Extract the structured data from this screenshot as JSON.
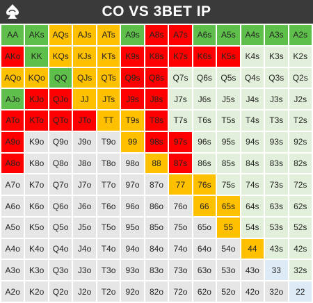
{
  "header": {
    "title": "CO VS 3BET IP",
    "logo_icon": "spade-swirl-logo-icon"
  },
  "colors": {
    "green": "#5ec04a",
    "lgreen": "#e2efda",
    "orange": "#ffc000",
    "red": "#ff0000",
    "gray": "#e6e6e6",
    "blue": "#ddebf7"
  },
  "grid": {
    "rows": [
      [
        "AA",
        "AKs",
        "AQs",
        "AJs",
        "ATs",
        "A9s",
        "A8s",
        "A7s",
        "A6s",
        "A5s",
        "A4s",
        "A3s",
        "A2s"
      ],
      [
        "AKo",
        "KK",
        "KQs",
        "KJs",
        "KTs",
        "K9s",
        "K8s",
        "K7s",
        "K6s",
        "K5s",
        "K4s",
        "K3s",
        "K2s"
      ],
      [
        "AQo",
        "KQo",
        "QQ",
        "QJs",
        "QTs",
        "Q9s",
        "Q8s",
        "Q7s",
        "Q6s",
        "Q5s",
        "Q4s",
        "Q3s",
        "Q2s"
      ],
      [
        "AJo",
        "KJo",
        "QJo",
        "JJ",
        "JTs",
        "J9s",
        "J8s",
        "J7s",
        "J6s",
        "J5s",
        "J4s",
        "J3s",
        "J2s"
      ],
      [
        "ATo",
        "KTo",
        "QTo",
        "JTo",
        "TT",
        "T9s",
        "T8s",
        "T7s",
        "T6s",
        "T5s",
        "T4s",
        "T3s",
        "T2s"
      ],
      [
        "A9o",
        "K9o",
        "Q9o",
        "J9o",
        "T9o",
        "99",
        "98s",
        "97s",
        "96s",
        "95s",
        "94s",
        "93s",
        "92s"
      ],
      [
        "A8o",
        "K8o",
        "Q8o",
        "J8o",
        "T8o",
        "98o",
        "88",
        "87s",
        "86s",
        "85s",
        "84s",
        "83s",
        "82s"
      ],
      [
        "A7o",
        "K7o",
        "Q7o",
        "J7o",
        "T7o",
        "97o",
        "87o",
        "77",
        "76s",
        "75s",
        "74s",
        "73s",
        "72s"
      ],
      [
        "A6o",
        "K6o",
        "Q6o",
        "J6o",
        "T6o",
        "96o",
        "86o",
        "76o",
        "66",
        "65s",
        "64s",
        "63s",
        "62s"
      ],
      [
        "A5o",
        "K5o",
        "Q5o",
        "J5o",
        "T5o",
        "95o",
        "85o",
        "75o",
        "65o",
        "55",
        "54s",
        "53s",
        "52s"
      ],
      [
        "A4o",
        "K4o",
        "Q4o",
        "J4o",
        "T4o",
        "94o",
        "84o",
        "74o",
        "64o",
        "54o",
        "44",
        "43s",
        "42s"
      ],
      [
        "A3o",
        "K3o",
        "Q3o",
        "J3o",
        "T3o",
        "93o",
        "83o",
        "73o",
        "63o",
        "53o",
        "43o",
        "33",
        "32s"
      ],
      [
        "A2o",
        "K2o",
        "Q2o",
        "J2o",
        "T2o",
        "92o",
        "82o",
        "72o",
        "62o",
        "52o",
        "42o",
        "32o",
        "22"
      ]
    ],
    "row_colors": [
      [
        "green",
        "green",
        "orange",
        "orange",
        "orange",
        "green",
        "red",
        "red",
        "green",
        "green",
        "green",
        "green",
        "green"
      ],
      [
        "red",
        "green",
        "orange",
        "orange",
        "orange",
        "red",
        "red",
        "red",
        "red",
        "red",
        "lgreen",
        "lgreen",
        "lgreen"
      ],
      [
        "orange",
        "orange",
        "green",
        "orange",
        "orange",
        "red",
        "red",
        "lgreen",
        "lgreen",
        "lgreen",
        "lgreen",
        "lgreen",
        "lgreen"
      ],
      [
        "green",
        "red",
        "red",
        "orange",
        "orange",
        "red",
        "red",
        "lgreen",
        "lgreen",
        "lgreen",
        "lgreen",
        "lgreen",
        "lgreen"
      ],
      [
        "red",
        "red",
        "red",
        "red",
        "orange",
        "orange",
        "red",
        "lgreen",
        "lgreen",
        "lgreen",
        "lgreen",
        "lgreen",
        "lgreen"
      ],
      [
        "red",
        "gray",
        "gray",
        "gray",
        "gray",
        "orange",
        "red",
        "red",
        "lgreen",
        "lgreen",
        "lgreen",
        "lgreen",
        "lgreen"
      ],
      [
        "red",
        "gray",
        "gray",
        "gray",
        "gray",
        "gray",
        "orange",
        "red",
        "lgreen",
        "lgreen",
        "lgreen",
        "lgreen",
        "lgreen"
      ],
      [
        "gray",
        "gray",
        "gray",
        "gray",
        "gray",
        "gray",
        "gray",
        "orange",
        "orange",
        "lgreen",
        "lgreen",
        "lgreen",
        "lgreen"
      ],
      [
        "gray",
        "gray",
        "gray",
        "gray",
        "gray",
        "gray",
        "gray",
        "gray",
        "orange",
        "orange",
        "lgreen",
        "lgreen",
        "lgreen"
      ],
      [
        "gray",
        "gray",
        "gray",
        "gray",
        "gray",
        "gray",
        "gray",
        "gray",
        "gray",
        "orange",
        "lgreen",
        "lgreen",
        "lgreen"
      ],
      [
        "gray",
        "gray",
        "gray",
        "gray",
        "gray",
        "gray",
        "gray",
        "gray",
        "gray",
        "gray",
        "orange",
        "lgreen",
        "lgreen"
      ],
      [
        "gray",
        "gray",
        "gray",
        "gray",
        "gray",
        "gray",
        "gray",
        "gray",
        "gray",
        "gray",
        "gray",
        "blue",
        "lgreen"
      ],
      [
        "gray",
        "gray",
        "gray",
        "gray",
        "gray",
        "gray",
        "gray",
        "gray",
        "gray",
        "gray",
        "gray",
        "gray",
        "blue"
      ]
    ]
  }
}
